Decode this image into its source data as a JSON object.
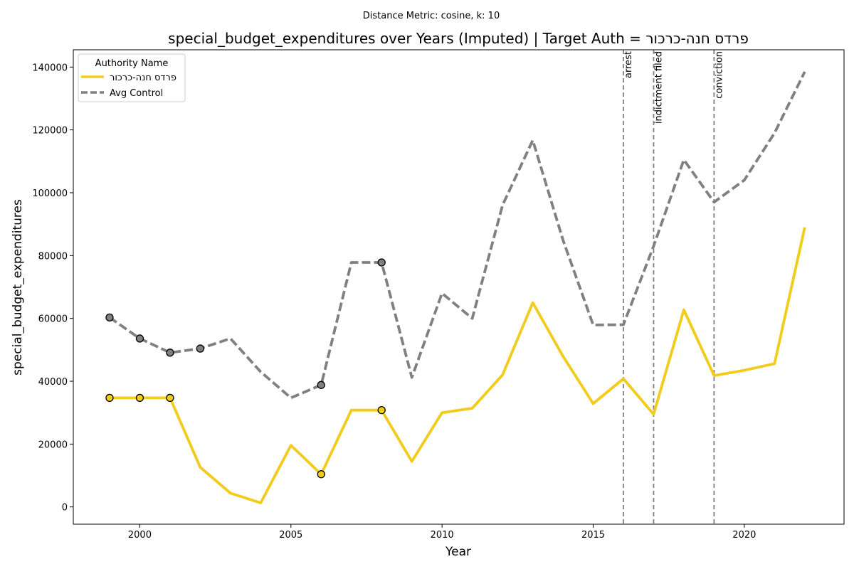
{
  "chart_data": {
    "type": "line",
    "suptitle": "Distance Metric: cosine, k: 10",
    "title": "special_budget_expenditures over Years (Imputed) | Target Auth = פרדס חנה-כרכור",
    "xlabel": "Year",
    "ylabel": "special_budget_expenditures",
    "xlim": [
      1997.8,
      2023.3
    ],
    "ylim": [
      -5500,
      145500
    ],
    "xticks": [
      2000,
      2005,
      2010,
      2015,
      2020
    ],
    "yticks": [
      0,
      20000,
      40000,
      60000,
      80000,
      100000,
      120000,
      140000
    ],
    "grid": false,
    "x": [
      1999,
      2000,
      2001,
      2002,
      2003,
      2004,
      2005,
      2006,
      2007,
      2008,
      2009,
      2010,
      2011,
      2012,
      2013,
      2014,
      2015,
      2016,
      2017,
      2018,
      2019,
      2020,
      2021,
      2022
    ],
    "series": [
      {
        "name": "פרדס חנה-כרכור",
        "color": "#f2cc1b",
        "style": "solid",
        "values": [
          34700,
          34700,
          34700,
          12600,
          4400,
          1300,
          19600,
          10400,
          30800,
          30800,
          14500,
          30000,
          31400,
          42000,
          65000,
          48000,
          32900,
          40800,
          29500,
          62700,
          41800,
          43500,
          45600,
          89000
        ],
        "imputed_x": [
          1999,
          2000,
          2001,
          2006,
          2008
        ]
      },
      {
        "name": "Avg Control",
        "color": "#808080",
        "style": "dashed",
        "values": [
          60300,
          53600,
          49100,
          50400,
          53600,
          43000,
          34700,
          38800,
          77800,
          77800,
          41200,
          68000,
          60000,
          96000,
          116700,
          85000,
          57900,
          58000,
          83000,
          110500,
          97000,
          104000,
          119000,
          138500
        ],
        "imputed_x": [
          1999,
          2000,
          2001,
          2002,
          2006,
          2008
        ]
      }
    ],
    "events": [
      {
        "x": 2016,
        "label": "arrest"
      },
      {
        "x": 2017,
        "label": "indictment filed"
      },
      {
        "x": 2019,
        "label": "conviction"
      }
    ],
    "legend": {
      "title": "Authority Name",
      "position": "top-left",
      "entries": [
        "פרדס חנה-כרכור",
        "Avg Control"
      ]
    }
  }
}
